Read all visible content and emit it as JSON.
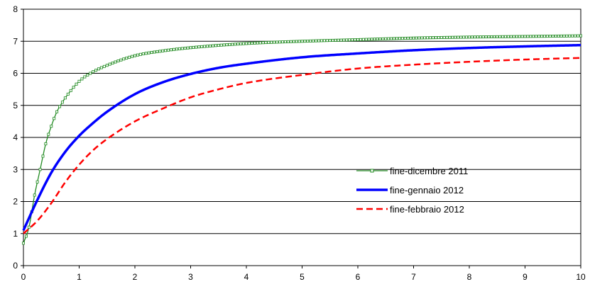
{
  "chart_data": {
    "type": "line",
    "title": "",
    "xlabel": "",
    "ylabel": "",
    "xlim": [
      0,
      10
    ],
    "ylim": [
      0,
      8
    ],
    "xticks": [
      "0",
      "1",
      "2",
      "3",
      "4",
      "5",
      "6",
      "7",
      "8",
      "9",
      "10"
    ],
    "yticks": [
      "0",
      "1",
      "2",
      "3",
      "4",
      "5",
      "6",
      "7",
      "8"
    ],
    "grid": "horizontal",
    "legend_position": "center-right",
    "series": [
      {
        "name": "fine-dicembre 2011",
        "color": "#228B22",
        "style": "solid-square-markers",
        "x": [
          0,
          0.1,
          0.2,
          0.3,
          0.4,
          0.5,
          0.6,
          0.7,
          0.8,
          1.0,
          1.2,
          1.5,
          2.0,
          2.5,
          3.0,
          4.0,
          5.0,
          6.0,
          7.0,
          8.0,
          9.0,
          10.0
        ],
        "y": [
          0.7,
          1.2,
          2.2,
          3.0,
          3.8,
          4.35,
          4.8,
          5.1,
          5.35,
          5.75,
          6.0,
          6.25,
          6.55,
          6.7,
          6.8,
          6.93,
          7.0,
          7.05,
          7.1,
          7.13,
          7.15,
          7.17
        ]
      },
      {
        "name": "fine-gennaio 2012",
        "color": "#0000FF",
        "style": "solid",
        "x": [
          0,
          0.25,
          0.5,
          0.75,
          1.0,
          1.25,
          1.5,
          2.0,
          2.5,
          3.0,
          3.5,
          4.0,
          5.0,
          6.0,
          7.0,
          8.0,
          9.0,
          10.0
        ],
        "y": [
          1.1,
          2.05,
          2.9,
          3.55,
          4.05,
          4.45,
          4.8,
          5.35,
          5.72,
          5.98,
          6.17,
          6.3,
          6.5,
          6.62,
          6.72,
          6.79,
          6.84,
          6.88
        ]
      },
      {
        "name": "fine-febbraio 2012",
        "color": "#FF0000",
        "style": "dashed",
        "x": [
          0,
          0.25,
          0.5,
          0.75,
          1.0,
          1.25,
          1.5,
          2.0,
          2.5,
          3.0,
          3.5,
          4.0,
          5.0,
          6.0,
          7.0,
          8.0,
          9.0,
          10.0
        ],
        "y": [
          1.0,
          1.4,
          1.95,
          2.6,
          3.15,
          3.6,
          3.95,
          4.5,
          4.9,
          5.25,
          5.5,
          5.7,
          5.95,
          6.15,
          6.27,
          6.36,
          6.43,
          6.48
        ]
      }
    ]
  }
}
